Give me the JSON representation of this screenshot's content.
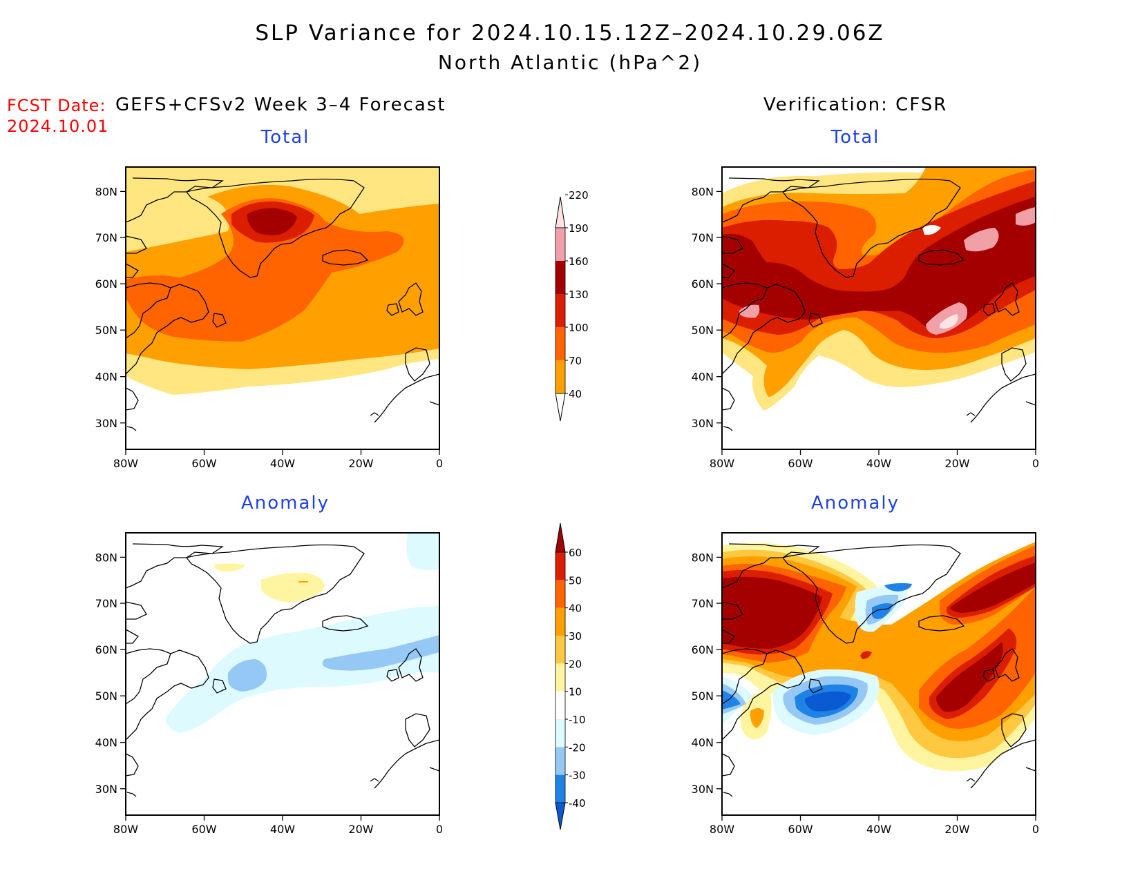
{
  "title": "SLP Variance for 2024.10.15.12Z–2024.10.29.06Z",
  "subtitle": "North Atlantic (hPa^2)",
  "fcst": {
    "label": "FCST Date:",
    "date": "2024.10.01"
  },
  "left_header": "GEFS+CFSv2 Week 3–4 Forecast",
  "right_header": "Verification: CFSR",
  "panel_titles": {
    "total": "Total",
    "anomaly": "Anomaly"
  },
  "axes": {
    "lat_ticks": [
      "80N",
      "70N",
      "60N",
      "50N",
      "40N",
      "30N"
    ],
    "lon_ticks": [
      "80W",
      "60W",
      "40W",
      "20W",
      "0"
    ]
  },
  "colorbar_total": {
    "levels": [
      "40",
      "70",
      "100",
      "130",
      "160",
      "190",
      "220"
    ],
    "colors": [
      "#ffe680",
      "#ffa000",
      "#ff6400",
      "#dc1e00",
      "#a50000",
      "#f2a0a8",
      "#ffe4e6"
    ]
  },
  "colorbar_anomaly": {
    "levels": [
      "-40",
      "-30",
      "-20",
      "-10",
      "10",
      "20",
      "30",
      "40",
      "50",
      "60"
    ],
    "colors": [
      "#0a5ad2",
      "#1e82e6",
      "#96c8f5",
      "#dcfaff",
      "#ffffff",
      "#fff5a0",
      "#ffc840",
      "#ffa000",
      "#ff6400",
      "#dc1e00",
      "#a50000"
    ]
  }
}
